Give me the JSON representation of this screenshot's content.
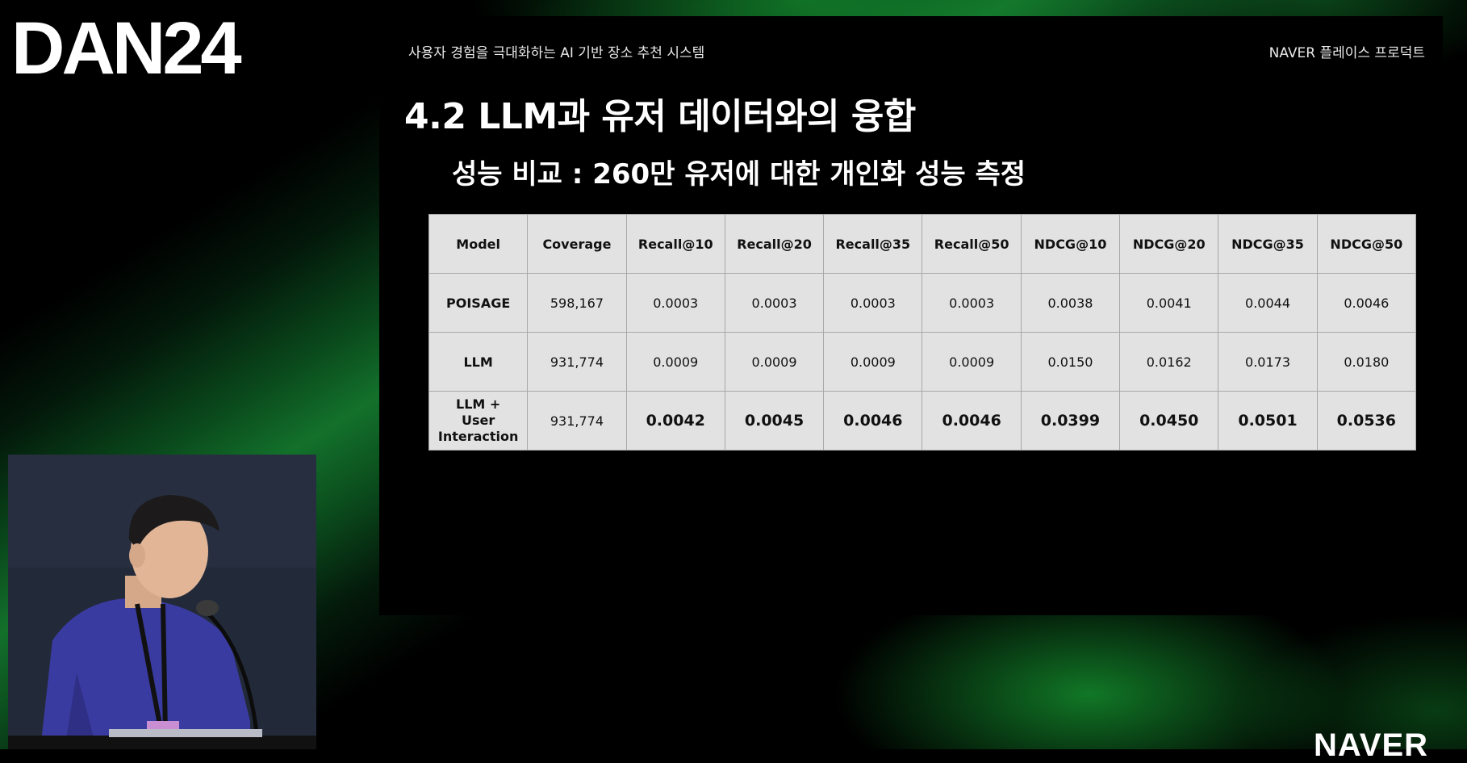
{
  "event": {
    "logo_text": "DAN24"
  },
  "slide": {
    "header_left": "사용자 경험을 극대화하는 AI 기반 장소 추천 시스템",
    "header_right": "NAVER 플레이스 프로덕트",
    "title": "4.2 LLM과 유저 데이터와의 융합",
    "subtitle": "성능 비교 : 260만 유저에 대한 개인화 성능 측정",
    "table": {
      "columns": [
        "Model",
        "Coverage",
        "Recall@10",
        "Recall@20",
        "Recall@35",
        "Recall@50",
        "NDCG@10",
        "NDCG@20",
        "NDCG@35",
        "NDCG@50"
      ],
      "rows": [
        {
          "model": "POISAGE",
          "values": [
            "598,167",
            "0.0003",
            "0.0003",
            "0.0003",
            "0.0003",
            "0.0038",
            "0.0041",
            "0.0044",
            "0.0046"
          ]
        },
        {
          "model": "LLM",
          "values": [
            "931,774",
            "0.0009",
            "0.0009",
            "0.0009",
            "0.0009",
            "0.0150",
            "0.0162",
            "0.0173",
            "0.0180"
          ]
        },
        {
          "model_lines": [
            "LLM +",
            "User",
            "Interaction"
          ],
          "values": [
            "931,774",
            "0.0042",
            "0.0045",
            "0.0046",
            "0.0046",
            "0.0399",
            "0.0450",
            "0.0501",
            "0.0536"
          ]
        }
      ]
    }
  },
  "brand": {
    "logo_text": "NAVER"
  },
  "colors": {
    "slide_bg": "#000000",
    "table_bg": "#e1e2e1",
    "accent_green": "#13712b"
  }
}
